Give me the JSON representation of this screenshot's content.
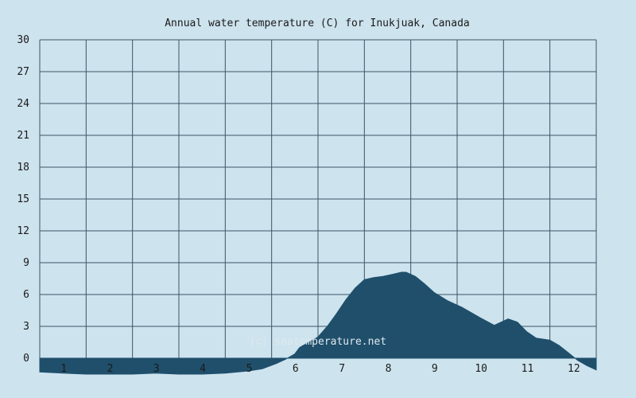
{
  "chart_data": {
    "type": "area",
    "title": "Annual water temperature (C) for Inukjuak, Canada",
    "xlabel": "",
    "ylabel": "",
    "x_ticks": [
      "1",
      "2",
      "3",
      "4",
      "5",
      "6",
      "7",
      "8",
      "9",
      "10",
      "11",
      "12"
    ],
    "y_ticks": [
      0,
      3,
      6,
      9,
      12,
      15,
      18,
      21,
      24,
      27,
      30
    ],
    "xlim": [
      0.5,
      12.5
    ],
    "ylim": [
      0,
      30
    ],
    "baseline": 0,
    "grid": true,
    "fill_color": "#1f4f6b",
    "background_color": "#cde3ee",
    "grid_color": "#3d5566",
    "watermark": "(c) seatemperature.net",
    "series": [
      {
        "x": [
          0.5,
          1.0,
          1.5,
          2.0,
          2.5,
          3.0,
          3.5,
          4.0,
          4.5,
          5.0,
          5.3,
          5.6,
          5.8,
          6.0,
          6.1,
          6.3,
          6.5,
          6.7,
          6.9,
          7.1,
          7.3,
          7.5,
          7.7,
          7.9,
          8.1,
          8.3,
          8.4,
          8.6,
          8.8,
          9.0,
          9.3,
          9.6,
          10.0,
          10.3,
          10.5,
          10.6,
          10.8,
          11.0,
          11.2,
          11.5,
          11.7,
          11.9,
          12.1,
          12.3,
          12.5
        ],
        "y": [
          -1.3,
          -1.4,
          -1.5,
          -1.5,
          -1.5,
          -1.4,
          -1.5,
          -1.5,
          -1.4,
          -1.2,
          -1.0,
          -0.5,
          -0.1,
          0.4,
          1.0,
          1.5,
          2.0,
          3.0,
          4.2,
          5.5,
          6.6,
          7.4,
          7.6,
          7.7,
          7.9,
          8.1,
          8.1,
          7.7,
          7.0,
          6.2,
          5.4,
          4.8,
          3.8,
          3.1,
          3.5,
          3.7,
          3.4,
          2.5,
          1.9,
          1.7,
          1.2,
          0.5,
          -0.2,
          -0.7,
          -1.1
        ]
      }
    ]
  }
}
